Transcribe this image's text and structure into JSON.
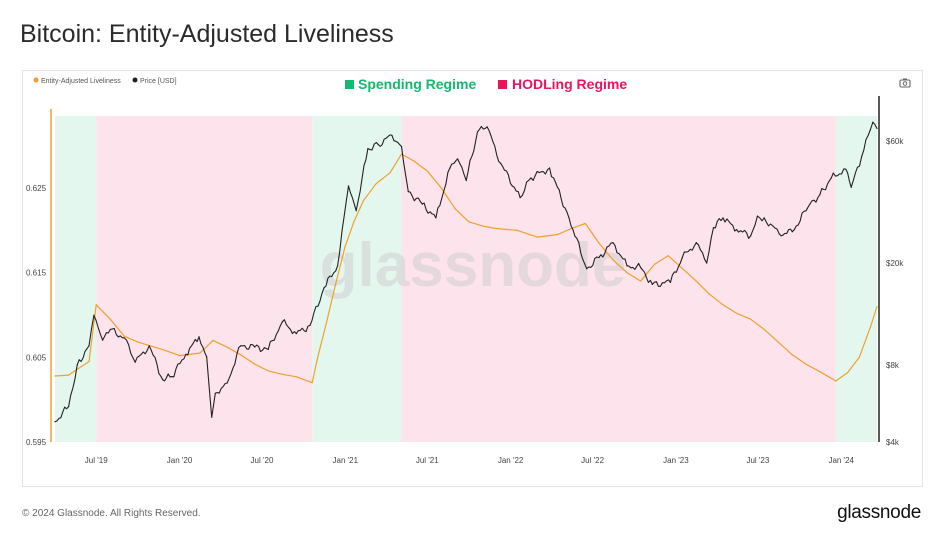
{
  "page": {
    "title": "Bitcoin: Entity-Adjusted Liveliness",
    "copyright": "© 2024 Glassnode. All Rights Reserved.",
    "brand": "glassnode",
    "watermark": "glassnode"
  },
  "toolbar": {
    "icon": "camera-icon"
  },
  "chart_data": {
    "type": "line",
    "title": "Bitcoin: Entity-Adjusted Liveliness",
    "regime_legend": [
      {
        "label": "Spending Regime",
        "color": "#14b86e"
      },
      {
        "label": "HODLing Regime",
        "color": "#e8155b"
      }
    ],
    "series_legend": [
      {
        "label": "Entity-Adjusted Liveliness",
        "color": "#f0a02c"
      },
      {
        "label": "Price [USD]",
        "color": "#222222"
      }
    ],
    "x_ticks": [
      "Jul '19",
      "Jan '20",
      "Jul '20",
      "Jan '21",
      "Jul '21",
      "Jan '22",
      "Jul '22",
      "Jan '23",
      "Jul '23",
      "Jan '24"
    ],
    "x_range": [
      "2019-04-01",
      "2024-03-20"
    ],
    "left_axis": {
      "ticks": [
        0.595,
        0.605,
        0.615,
        0.625
      ],
      "ylim": [
        0.595,
        0.6335
      ]
    },
    "right_axis": {
      "scale": "log",
      "ticks": [
        4000,
        8000,
        20000,
        60000
      ],
      "tick_labels": [
        "$4k",
        "$8k",
        "$20k",
        "$60k"
      ],
      "ylim": [
        4000,
        75000
      ]
    },
    "regimes": [
      {
        "regime": "spending",
        "start": "2019-04-01",
        "end": "2019-07-01"
      },
      {
        "regime": "hodling",
        "start": "2019-07-01",
        "end": "2020-10-20"
      },
      {
        "regime": "spending",
        "start": "2020-10-20",
        "end": "2021-05-05"
      },
      {
        "regime": "hodling",
        "start": "2021-05-05",
        "end": "2023-12-20"
      },
      {
        "regime": "spending",
        "start": "2023-12-20",
        "end": "2024-03-20"
      }
    ],
    "series": [
      {
        "name": "Entity-Adjusted Liveliness",
        "color": "#f0a02c",
        "axis": "left",
        "points": [
          [
            "2019-04-01",
            0.6028
          ],
          [
            "2019-05-01",
            0.6029
          ],
          [
            "2019-05-20",
            0.6036
          ],
          [
            "2019-06-15",
            0.6045
          ],
          [
            "2019-07-01",
            0.6112
          ],
          [
            "2019-08-01",
            0.6095
          ],
          [
            "2019-09-01",
            0.6075
          ],
          [
            "2019-10-01",
            0.6068
          ],
          [
            "2019-11-01",
            0.6063
          ],
          [
            "2019-12-01",
            0.6058
          ],
          [
            "2020-01-01",
            0.6052
          ],
          [
            "2020-02-15",
            0.6055
          ],
          [
            "2020-03-15",
            0.607
          ],
          [
            "2020-04-15",
            0.6062
          ],
          [
            "2020-05-15",
            0.6053
          ],
          [
            "2020-06-15",
            0.6042
          ],
          [
            "2020-07-15",
            0.6034
          ],
          [
            "2020-08-15",
            0.603
          ],
          [
            "2020-09-15",
            0.6027
          ],
          [
            "2020-10-20",
            0.602
          ],
          [
            "2020-11-01",
            0.605
          ],
          [
            "2020-11-20",
            0.609
          ],
          [
            "2020-12-10",
            0.6135
          ],
          [
            "2020-12-31",
            0.618
          ],
          [
            "2021-01-20",
            0.621
          ],
          [
            "2021-02-10",
            0.6235
          ],
          [
            "2021-03-10",
            0.6255
          ],
          [
            "2021-04-10",
            0.6268
          ],
          [
            "2021-05-05",
            0.629
          ],
          [
            "2021-06-01",
            0.6282
          ],
          [
            "2021-07-01",
            0.627
          ],
          [
            "2021-08-01",
            0.625
          ],
          [
            "2021-09-01",
            0.6225
          ],
          [
            "2021-10-01",
            0.621
          ],
          [
            "2021-11-01",
            0.6205
          ],
          [
            "2021-12-01",
            0.6202
          ],
          [
            "2022-01-15",
            0.62
          ],
          [
            "2022-03-01",
            0.6192
          ],
          [
            "2022-04-15",
            0.6195
          ],
          [
            "2022-05-15",
            0.6202
          ],
          [
            "2022-06-15",
            0.6208
          ],
          [
            "2022-07-15",
            0.6185
          ],
          [
            "2022-08-15",
            0.6165
          ],
          [
            "2022-09-15",
            0.615
          ],
          [
            "2022-10-15",
            0.614
          ],
          [
            "2022-11-15",
            0.616
          ],
          [
            "2022-12-15",
            0.617
          ],
          [
            "2023-01-15",
            0.6155
          ],
          [
            "2023-02-15",
            0.614
          ],
          [
            "2023-03-15",
            0.6125
          ],
          [
            "2023-04-15",
            0.6112
          ],
          [
            "2023-05-15",
            0.6102
          ],
          [
            "2023-06-15",
            0.6095
          ],
          [
            "2023-07-15",
            0.6083
          ],
          [
            "2023-08-15",
            0.6068
          ],
          [
            "2023-09-15",
            0.6053
          ],
          [
            "2023-10-15",
            0.6042
          ],
          [
            "2023-11-15",
            0.6033
          ],
          [
            "2023-12-20",
            0.6022
          ],
          [
            "2024-01-15",
            0.6032
          ],
          [
            "2024-02-10",
            0.605
          ],
          [
            "2024-03-05",
            0.6085
          ],
          [
            "2024-03-20",
            0.611
          ]
        ]
      },
      {
        "name": "Price [USD]",
        "color": "#222222",
        "axis": "right",
        "points": [
          [
            "2019-04-01",
            4800
          ],
          [
            "2019-05-01",
            5500
          ],
          [
            "2019-05-20",
            8000
          ],
          [
            "2019-06-15",
            9500
          ],
          [
            "2019-06-26",
            12500
          ],
          [
            "2019-07-15",
            10000
          ],
          [
            "2019-08-01",
            11000
          ],
          [
            "2019-09-01",
            10200
          ],
          [
            "2019-09-25",
            8200
          ],
          [
            "2019-10-26",
            9500
          ],
          [
            "2019-11-25",
            7000
          ],
          [
            "2019-12-15",
            7200
          ],
          [
            "2020-01-15",
            8800
          ],
          [
            "2020-02-13",
            10300
          ],
          [
            "2020-03-01",
            8600
          ],
          [
            "2020-03-12",
            5000
          ],
          [
            "2020-03-20",
            6200
          ],
          [
            "2020-04-15",
            6800
          ],
          [
            "2020-05-15",
            9500
          ],
          [
            "2020-06-15",
            9400
          ],
          [
            "2020-07-15",
            9200
          ],
          [
            "2020-08-15",
            11800
          ],
          [
            "2020-09-15",
            10600
          ],
          [
            "2020-10-15",
            11400
          ],
          [
            "2020-11-15",
            16000
          ],
          [
            "2020-12-15",
            19500
          ],
          [
            "2021-01-08",
            40000
          ],
          [
            "2021-01-25",
            32000
          ],
          [
            "2021-02-20",
            56000
          ],
          [
            "2021-03-15",
            58000
          ],
          [
            "2021-04-14",
            63000
          ],
          [
            "2021-05-05",
            57000
          ],
          [
            "2021-05-20",
            38000
          ],
          [
            "2021-06-20",
            34000
          ],
          [
            "2021-07-20",
            30000
          ],
          [
            "2021-08-20",
            47000
          ],
          [
            "2021-09-06",
            51000
          ],
          [
            "2021-09-25",
            42000
          ],
          [
            "2021-10-20",
            65000
          ],
          [
            "2021-11-10",
            68000
          ],
          [
            "2021-12-10",
            49000
          ],
          [
            "2022-01-22",
            36000
          ],
          [
            "2022-02-15",
            43000
          ],
          [
            "2022-03-28",
            47000
          ],
          [
            "2022-05-10",
            30000
          ],
          [
            "2022-06-18",
            19000
          ],
          [
            "2022-07-15",
            21000
          ],
          [
            "2022-08-15",
            24000
          ],
          [
            "2022-09-15",
            19500
          ],
          [
            "2022-10-15",
            19200
          ],
          [
            "2022-11-10",
            16500
          ],
          [
            "2022-12-20",
            16800
          ],
          [
            "2023-01-15",
            21000
          ],
          [
            "2023-02-15",
            24000
          ],
          [
            "2023-03-10",
            20000
          ],
          [
            "2023-03-25",
            27500
          ],
          [
            "2023-04-15",
            30000
          ],
          [
            "2023-05-15",
            27000
          ],
          [
            "2023-06-15",
            25500
          ],
          [
            "2023-06-30",
            30500
          ],
          [
            "2023-07-15",
            30000
          ],
          [
            "2023-08-17",
            26000
          ],
          [
            "2023-09-15",
            26500
          ],
          [
            "2023-10-24",
            34000
          ],
          [
            "2023-11-15",
            37000
          ],
          [
            "2023-12-10",
            43000
          ],
          [
            "2024-01-11",
            46500
          ],
          [
            "2024-01-23",
            39500
          ],
          [
            "2024-02-15",
            52000
          ],
          [
            "2024-03-05",
            66000
          ],
          [
            "2024-03-11",
            71000
          ],
          [
            "2024-03-20",
            67000
          ]
        ]
      }
    ]
  }
}
